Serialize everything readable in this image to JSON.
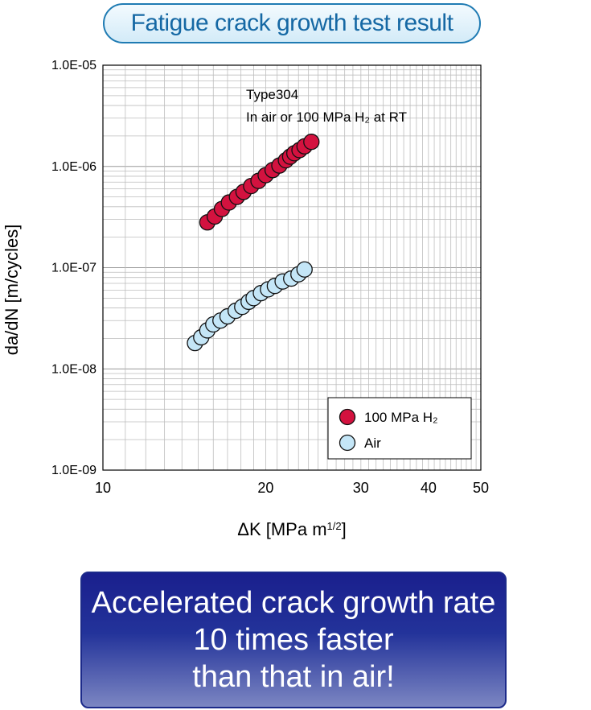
{
  "header": {
    "title": "Fatigue crack growth test result"
  },
  "banner": {
    "line1": "Accelerated crack growth rate",
    "line2": "10 times faster",
    "line3": "than that in air!"
  },
  "chart_data": {
    "type": "scatter",
    "title": "",
    "xlabel": "ΔK [MPa m^1/2]",
    "ylabel": "da/dN [m/cycles]",
    "x_scale": "log",
    "y_scale": "log",
    "xlim": [
      10,
      50
    ],
    "ylim": [
      1e-09,
      1e-05
    ],
    "x_ticks": [
      10,
      20,
      30,
      40,
      50
    ],
    "x_tick_labels": [
      "10",
      "20",
      "30",
      "40",
      "50"
    ],
    "y_ticks": [
      1e-09,
      1e-08,
      1e-07,
      1e-06,
      1e-05
    ],
    "y_tick_labels": [
      "1.0E-09",
      "1.0E-08",
      "1.0E-07",
      "1.0E-06",
      "1.0E-05"
    ],
    "grid": true,
    "annotation": {
      "line1": "Type304",
      "line2": "In air or 100 MPa H₂ at RT"
    },
    "legend_position": "bottom-right",
    "series": [
      {
        "name": "100 MPa H₂",
        "color": "#d3123f",
        "x": [
          15.6,
          16.1,
          16.6,
          17.1,
          17.7,
          18.2,
          18.8,
          19.4,
          20.0,
          20.6,
          21.2,
          21.8,
          22.2,
          22.6,
          23.1,
          23.6,
          24.3
        ],
        "y": [
          2.8e-07,
          3.2e-07,
          3.8e-07,
          4.4e-07,
          5e-07,
          5.6e-07,
          6.4e-07,
          7.2e-07,
          8.2e-07,
          9.2e-07,
          1.02e-06,
          1.15e-06,
          1.25e-06,
          1.35e-06,
          1.45e-06,
          1.58e-06,
          1.75e-06
        ]
      },
      {
        "name": "Air",
        "color": "#c4e6f7",
        "x": [
          14.8,
          15.2,
          15.6,
          16.0,
          16.5,
          17.0,
          17.6,
          18.1,
          18.6,
          19.0,
          19.6,
          20.2,
          20.8,
          21.5,
          22.3,
          23.0,
          23.6
        ],
        "y": [
          1.8e-08,
          2.05e-08,
          2.4e-08,
          2.75e-08,
          3e-08,
          3.3e-08,
          3.75e-08,
          4.1e-08,
          4.6e-08,
          5e-08,
          5.6e-08,
          6.1e-08,
          6.6e-08,
          7.3e-08,
          7.8e-08,
          8.6e-08,
          9.6e-08
        ]
      }
    ]
  }
}
